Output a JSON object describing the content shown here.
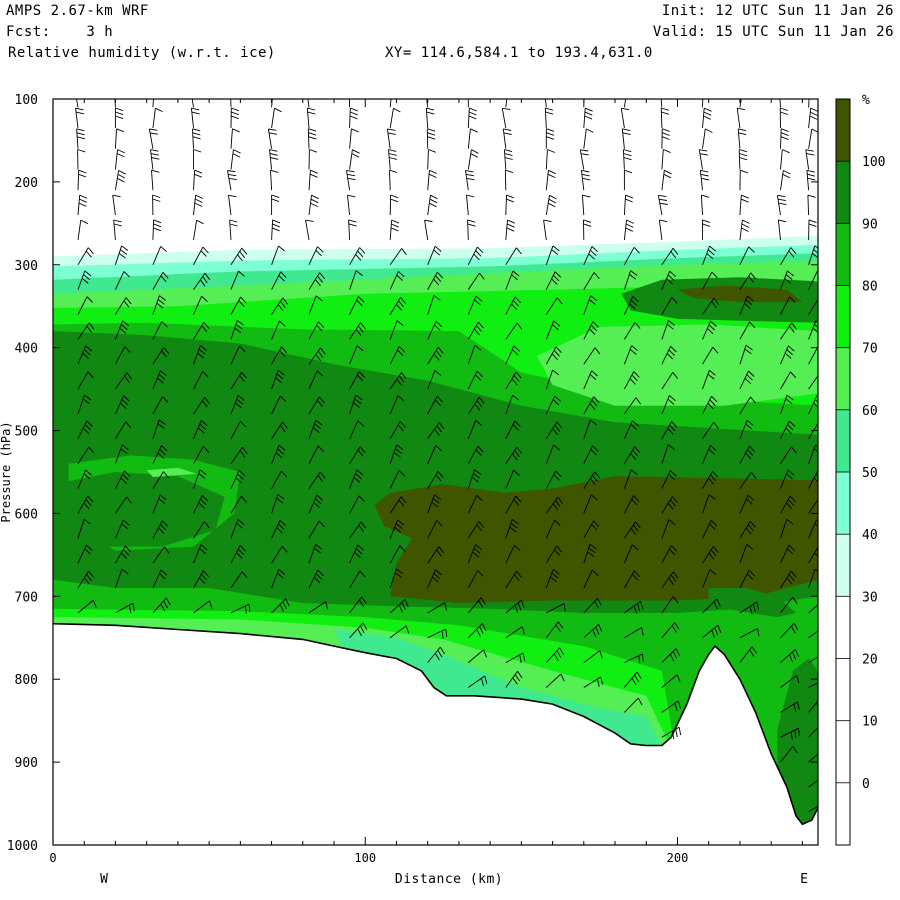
{
  "header": {
    "line1_left": "AMPS 2.67-km WRF",
    "line2_left": "Fcst:    3 h",
    "line3_left": "Relative humidity (w.r.t. ice)",
    "line3_xy": "XY= 114.6,584.1 to 193.4,631.0",
    "line1_right": "Init: 12 UTC Sun 11 Jan 26",
    "line2_right": "Valid: 15 UTC Sun 11 Jan 26"
  },
  "chart_data": {
    "type": "heatmap",
    "title": "Relative humidity (w.r.t. ice)",
    "xlabel": "Distance (km)",
    "ylabel": "Pressure (hPa)",
    "xlim": [
      0,
      245
    ],
    "ylim": [
      1000,
      100
    ],
    "x_ticks": [
      0,
      100,
      200
    ],
    "y_ticks": [
      100,
      200,
      300,
      400,
      500,
      600,
      700,
      800,
      900,
      1000
    ],
    "x_end_labels": {
      "left": "W",
      "right": "E"
    },
    "colorbar": {
      "unit": "%",
      "tick_labels": [
        0,
        10,
        20,
        30,
        40,
        50,
        60,
        70,
        80,
        90,
        100
      ],
      "levels": [
        -10,
        0,
        10,
        20,
        30,
        40,
        50,
        60,
        70,
        80,
        90,
        100,
        110
      ],
      "colors": [
        "#ffffff",
        "#ffffff",
        "#ffffff",
        "#ffffff",
        "#ccffee",
        "#7fffd4",
        "#40e890",
        "#55ee55",
        "#11ee11",
        "#11bb11",
        "#118811",
        "#405500"
      ]
    },
    "bands": [
      {
        "name": "dry-upper",
        "value": 20,
        "color": "#ffffff",
        "points": [
          [
            0,
            100
          ],
          [
            245,
            100
          ],
          [
            245,
            280
          ],
          [
            0,
            300
          ]
        ]
      },
      {
        "name": "rh-30",
        "value": 35,
        "color": "#ccffee",
        "points": [
          [
            0,
            290
          ],
          [
            60,
            282
          ],
          [
            140,
            280
          ],
          [
            200,
            272
          ],
          [
            245,
            265
          ],
          [
            245,
            1000
          ],
          [
            0,
            1000
          ]
        ]
      },
      {
        "name": "rh-40",
        "value": 45,
        "color": "#7fffd4",
        "points": [
          [
            0,
            302
          ],
          [
            60,
            295
          ],
          [
            140,
            292
          ],
          [
            200,
            282
          ],
          [
            245,
            276
          ],
          [
            245,
            1000
          ],
          [
            0,
            1000
          ]
        ]
      },
      {
        "name": "rh-50",
        "value": 55,
        "color": "#40e890",
        "points": [
          [
            0,
            318
          ],
          [
            60,
            308
          ],
          [
            140,
            302
          ],
          [
            200,
            292
          ],
          [
            245,
            286
          ],
          [
            245,
            1000
          ],
          [
            0,
            1000
          ]
        ]
      },
      {
        "name": "rh-60",
        "value": 65,
        "color": "#55ee55",
        "points": [
          [
            0,
            335
          ],
          [
            60,
            325
          ],
          [
            140,
            310
          ],
          [
            200,
            300
          ],
          [
            245,
            295
          ],
          [
            245,
            1000
          ],
          [
            0,
            1000
          ]
        ]
      },
      {
        "name": "rh-70",
        "value": 75,
        "color": "#11ee11",
        "points": [
          [
            0,
            352
          ],
          [
            40,
            350
          ],
          [
            100,
            335
          ],
          [
            160,
            330
          ],
          [
            245,
            322
          ],
          [
            245,
            1000
          ],
          [
            0,
            1000
          ]
        ]
      },
      {
        "name": "rh-80",
        "value": 85,
        "color": "#11bb11",
        "points": [
          [
            0,
            372
          ],
          [
            30,
            370
          ],
          [
            80,
            378
          ],
          [
            130,
            380
          ],
          [
            150,
            430
          ],
          [
            180,
            455
          ],
          [
            245,
            470
          ],
          [
            245,
            1000
          ],
          [
            0,
            1000
          ]
        ]
      },
      {
        "name": "rh-90",
        "value": 95,
        "color": "#118811",
        "points": [
          [
            0,
            380
          ],
          [
            30,
            385
          ],
          [
            60,
            395
          ],
          [
            90,
            420
          ],
          [
            120,
            440
          ],
          [
            150,
            470
          ],
          [
            180,
            490
          ],
          [
            245,
            505
          ],
          [
            245,
            700
          ],
          [
            220,
            715
          ],
          [
            200,
            720
          ],
          [
            170,
            720
          ],
          [
            140,
            715
          ],
          [
            110,
            712
          ],
          [
            80,
            708
          ],
          [
            50,
            690
          ],
          [
            20,
            690
          ],
          [
            0,
            680
          ]
        ]
      },
      {
        "name": "rh-100-core",
        "value": 105,
        "color": "#405500",
        "points": [
          [
            103,
            590
          ],
          [
            108,
            575
          ],
          [
            125,
            565
          ],
          [
            145,
            575
          ],
          [
            160,
            570
          ],
          [
            180,
            555
          ],
          [
            245,
            560
          ],
          [
            245,
            680
          ],
          [
            225,
            700
          ],
          [
            200,
            705
          ],
          [
            160,
            705
          ],
          [
            130,
            708
          ],
          [
            108,
            700
          ],
          [
            110,
            660
          ],
          [
            115,
            630
          ],
          [
            106,
            615
          ]
        ]
      },
      {
        "name": "upper-moist-east",
        "value": 95,
        "color": "#118811",
        "points": [
          [
            182,
            335
          ],
          [
            195,
            318
          ],
          [
            220,
            315
          ],
          [
            245,
            320
          ],
          [
            245,
            370
          ],
          [
            225,
            368
          ],
          [
            200,
            365
          ],
          [
            185,
            355
          ]
        ]
      },
      {
        "name": "upper-core-east",
        "value": 105,
        "color": "#405500",
        "points": [
          [
            200,
            330
          ],
          [
            215,
            325
          ],
          [
            235,
            330
          ],
          [
            240,
            345
          ],
          [
            220,
            345
          ],
          [
            205,
            340
          ]
        ]
      },
      {
        "name": "moist-east-400",
        "value": 75,
        "color": "#55ee55",
        "points": [
          [
            155,
            410
          ],
          [
            175,
            375
          ],
          [
            210,
            372
          ],
          [
            245,
            380
          ],
          [
            245,
            455
          ],
          [
            215,
            470
          ],
          [
            180,
            470
          ],
          [
            160,
            445
          ]
        ]
      },
      {
        "name": "west-midlevel-80",
        "value": 85,
        "color": "#11bb11",
        "points": [
          [
            5,
            540
          ],
          [
            25,
            530
          ],
          [
            45,
            535
          ],
          [
            60,
            550
          ],
          [
            58,
            600
          ],
          [
            45,
            640
          ],
          [
            20,
            645
          ],
          [
            5,
            610
          ]
        ]
      },
      {
        "name": "west-midlevel-90",
        "value": 95,
        "color": "#118811",
        "points": [
          [
            0,
            565
          ],
          [
            20,
            550
          ],
          [
            40,
            555
          ],
          [
            55,
            580
          ],
          [
            52,
            620
          ],
          [
            35,
            640
          ],
          [
            12,
            640
          ],
          [
            0,
            610
          ]
        ]
      },
      {
        "name": "west-60",
        "value": 65,
        "color": "#55ee55",
        "points": [
          [
            30,
            548
          ],
          [
            40,
            545
          ],
          [
            46,
            552
          ],
          [
            32,
            556
          ]
        ]
      },
      {
        "name": "lower-80",
        "value": 85,
        "color": "#11bb11",
        "points": [
          [
            0,
            700
          ],
          [
            50,
            705
          ],
          [
            90,
            712
          ],
          [
            130,
            718
          ],
          [
            160,
            725
          ],
          [
            190,
            745
          ],
          [
            200,
            760
          ],
          [
            200,
            900
          ],
          [
            0,
            900
          ]
        ]
      },
      {
        "name": "lower-70",
        "value": 75,
        "color": "#11ee11",
        "points": [
          [
            0,
            715
          ],
          [
            60,
            718
          ],
          [
            100,
            725
          ],
          [
            130,
            735
          ],
          [
            170,
            760
          ],
          [
            195,
            790
          ],
          [
            200,
            900
          ],
          [
            0,
            900
          ]
        ]
      },
      {
        "name": "lower-60",
        "value": 65,
        "color": "#55ee55",
        "points": [
          [
            0,
            725
          ],
          [
            60,
            728
          ],
          [
            100,
            738
          ],
          [
            125,
            752
          ],
          [
            160,
            790
          ],
          [
            190,
            820
          ],
          [
            200,
            900
          ],
          [
            0,
            900
          ]
        ]
      },
      {
        "name": "lower-50",
        "value": 55,
        "color": "#40e890",
        "points": [
          [
            90,
            740
          ],
          [
            110,
            750
          ],
          [
            125,
            770
          ],
          [
            150,
            810
          ],
          [
            175,
            835
          ],
          [
            190,
            845
          ],
          [
            195,
            880
          ],
          [
            150,
            880
          ],
          [
            110,
            840
          ],
          [
            95,
            780
          ]
        ]
      },
      {
        "name": "east-valley-80",
        "value": 85,
        "color": "#11bb11",
        "points": [
          [
            200,
            870
          ],
          [
            210,
            760
          ],
          [
            220,
            735
          ],
          [
            230,
            730
          ],
          [
            240,
            740
          ],
          [
            245,
            770
          ],
          [
            245,
            1000
          ],
          [
            200,
            1000
          ]
        ]
      },
      {
        "name": "east-valley-90",
        "value": 95,
        "color": "#118811",
        "points": [
          [
            232,
            860
          ],
          [
            237,
            790
          ],
          [
            242,
            775
          ],
          [
            245,
            790
          ],
          [
            245,
            1000
          ],
          [
            232,
            1000
          ]
        ]
      },
      {
        "name": "east-upper-90-strip",
        "value": 95,
        "color": "#118811",
        "points": [
          [
            210,
            690
          ],
          [
            222,
            690
          ],
          [
            232,
            700
          ],
          [
            238,
            720
          ],
          [
            232,
            725
          ],
          [
            220,
            718
          ],
          [
            210,
            710
          ]
        ]
      }
    ],
    "terrain": [
      [
        0,
        733
      ],
      [
        20,
        735
      ],
      [
        40,
        740
      ],
      [
        60,
        745
      ],
      [
        80,
        752
      ],
      [
        90,
        760
      ],
      [
        100,
        768
      ],
      [
        110,
        775
      ],
      [
        118,
        790
      ],
      [
        122,
        810
      ],
      [
        126,
        820
      ],
      [
        135,
        820
      ],
      [
        150,
        824
      ],
      [
        160,
        830
      ],
      [
        170,
        845
      ],
      [
        180,
        865
      ],
      [
        185,
        878
      ],
      [
        190,
        880
      ],
      [
        195,
        880
      ],
      [
        198,
        870
      ],
      [
        203,
        830
      ],
      [
        207,
        790
      ],
      [
        210,
        770
      ],
      [
        212,
        760
      ],
      [
        215,
        770
      ],
      [
        220,
        800
      ],
      [
        225,
        840
      ],
      [
        230,
        890
      ],
      [
        235,
        930
      ],
      [
        238,
        965
      ],
      [
        240,
        975
      ],
      [
        243,
        970
      ],
      [
        245,
        955
      ]
    ],
    "wind_columns_km": [
      8,
      20,
      32,
      45,
      57,
      70,
      82,
      95,
      108,
      120,
      133,
      145,
      158,
      170,
      183,
      195,
      208,
      220,
      233,
      242
    ],
    "wind_levels_hpa": [
      110,
      135,
      160,
      185,
      210,
      240,
      270,
      300,
      330,
      360,
      390,
      420,
      450,
      480,
      510,
      540,
      570,
      600,
      630,
      660,
      690,
      720,
      750,
      780,
      810,
      840,
      870,
      900,
      930,
      960
    ]
  }
}
